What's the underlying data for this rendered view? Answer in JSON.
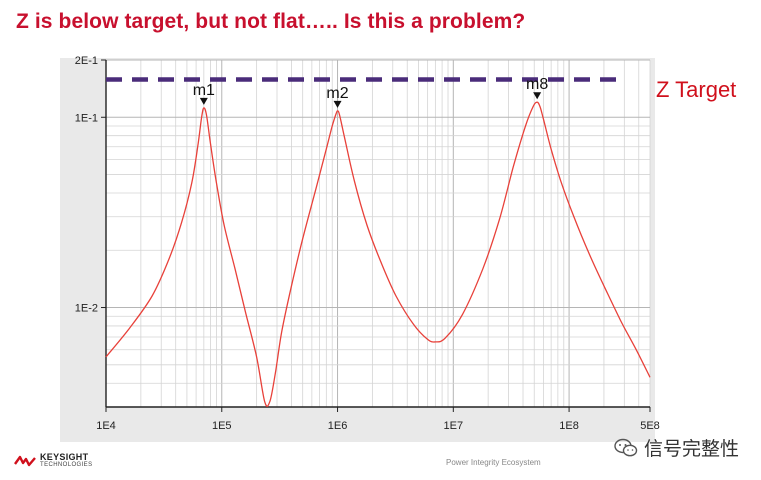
{
  "title": "Z is below target, but not flat….. Is this a problem?",
  "chart_data": {
    "type": "line",
    "xscale": "log",
    "yscale": "log",
    "xlim": [
      10000,
      500000000
    ],
    "ylim": [
      0.003,
      0.2
    ],
    "x_tick_labels": [
      "1E4",
      "1E5",
      "1E6",
      "1E7",
      "1E8",
      "5E8"
    ],
    "x_tick_values": [
      10000,
      100000,
      1000000,
      10000000,
      100000000,
      500000000
    ],
    "y_tick_labels": [
      "2E-1",
      "1E-1",
      "1E-2"
    ],
    "y_tick_values": [
      0.2,
      0.1,
      0.01
    ],
    "grid": true,
    "series": [
      {
        "color": "#e8413a",
        "x": [
          10000,
          16000,
          25000,
          35000,
          45000,
          55000,
          62000,
          67000,
          70000,
          74000,
          80000,
          90000,
          105000,
          130000,
          160000,
          200000,
          235000,
          260000,
          290000,
          330000,
          400000,
          500000,
          650000,
          800000,
          900000,
          970000,
          1000000,
          1040000,
          1150000,
          1400000,
          1800000,
          2400000,
          3200000,
          4500000,
          6000000,
          7000000,
          8500000,
          12000000,
          18000000,
          25000000,
          33000000,
          42000000,
          49000000,
          53000000,
          56000000,
          60000000,
          70000000,
          85000000,
          110000000,
          150000000,
          200000000,
          280000000,
          380000000,
          500000000
        ],
        "y": [
          0.0055,
          0.0078,
          0.0115,
          0.018,
          0.028,
          0.045,
          0.07,
          0.1,
          0.112,
          0.102,
          0.072,
          0.045,
          0.027,
          0.016,
          0.0095,
          0.0055,
          0.0032,
          0.0032,
          0.0045,
          0.0075,
          0.013,
          0.023,
          0.042,
          0.068,
          0.09,
          0.104,
          0.108,
          0.103,
          0.078,
          0.046,
          0.027,
          0.017,
          0.0115,
          0.0082,
          0.0068,
          0.0066,
          0.0069,
          0.0092,
          0.016,
          0.029,
          0.055,
          0.09,
          0.114,
          0.12,
          0.114,
          0.098,
          0.068,
          0.046,
          0.03,
          0.019,
          0.013,
          0.0085,
          0.006,
          0.0043
        ]
      }
    ],
    "target": {
      "y": 0.158,
      "color": "#4a2c7a",
      "label": "Z Target"
    },
    "markers": [
      {
        "label": "m1",
        "x": 70000,
        "y": 0.112
      },
      {
        "label": "m2",
        "x": 1000000,
        "y": 0.108
      },
      {
        "label": "m8",
        "x": 53000000,
        "y": 0.12
      }
    ]
  },
  "logo": {
    "name": "KEYSIGHT",
    "sub": "TECHNOLOGIES",
    "color": "#d0101c"
  },
  "footer": "Power Integrity Ecosystem",
  "watermark": {
    "text": "信号完整性",
    "icon": "wechat-icon"
  }
}
